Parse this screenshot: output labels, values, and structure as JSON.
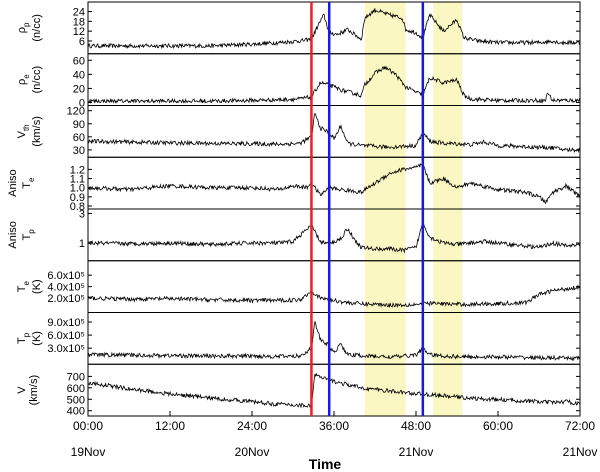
{
  "chart_data": {
    "type": "line",
    "xlabel": "Time",
    "xlim": [
      0,
      72
    ],
    "x_ticks": [
      "00:00",
      "12:00",
      "24:00",
      "36:00",
      "48:00",
      "60:00",
      "72:00"
    ],
    "date_labels": [
      {
        "x": 0,
        "label": "19Nov"
      },
      {
        "x": 24,
        "label": "20Nov"
      },
      {
        "x": 48,
        "label": "21Nov"
      },
      {
        "x": 72,
        "label": "21Nov"
      }
    ],
    "event_lines": [
      {
        "x": 32.7,
        "color": "#e8202a"
      },
      {
        "x": 35.3,
        "color": "#1a1adb"
      },
      {
        "x": 49.0,
        "color": "#1a1adb"
      }
    ],
    "shaded_regions": [
      {
        "x0": 40.5,
        "x1": 46.5,
        "color": "#fbf7c2"
      },
      {
        "x0": 50.5,
        "x1": 54.8,
        "color": "#fbf7c2"
      }
    ],
    "panels": [
      {
        "name": "rho_p",
        "ylabel_parts": [
          "ρ",
          "p",
          "(n/cc)"
        ],
        "ylim": [
          0,
          28
        ],
        "yticks": [
          6,
          12,
          18,
          24
        ],
        "ytick_labels": [
          "6",
          "12",
          "18",
          "24"
        ],
        "series_x": [
          0,
          6,
          12,
          18,
          24,
          28,
          31,
          32.7,
          33.5,
          34.5,
          35.3,
          36.5,
          38,
          40,
          40.5,
          42,
          44,
          46,
          46.5,
          48,
          49,
          50,
          52,
          54,
          55,
          57,
          60,
          63,
          66,
          68,
          69,
          70,
          72
        ],
        "series_y": [
          3,
          3,
          3,
          3,
          4,
          5,
          6,
          7,
          14,
          22,
          11,
          10,
          13,
          7,
          20,
          25,
          22,
          20,
          13,
          11,
          8,
          22,
          12,
          19,
          8,
          6,
          5,
          5,
          5,
          6,
          5,
          5,
          5
        ]
      },
      {
        "name": "rho_e",
        "ylabel_parts": [
          "ρ",
          "e",
          "(n/cc)"
        ],
        "ylim": [
          0,
          65
        ],
        "yticks": [
          0,
          20,
          40,
          60
        ],
        "ytick_labels": [
          "0",
          "20",
          "40",
          "60"
        ],
        "series_x": [
          0,
          6,
          12,
          18,
          24,
          28,
          31,
          32.7,
          34,
          35.3,
          37,
          40,
          40.5,
          42,
          43.5,
          45,
          46.5,
          48,
          49,
          50,
          52,
          54,
          55,
          56,
          60,
          63,
          66,
          67,
          67.2,
          68,
          70,
          72
        ],
        "series_y": [
          2,
          2,
          2,
          2,
          3,
          4,
          5,
          8,
          28,
          25,
          18,
          10,
          25,
          42,
          50,
          40,
          22,
          15,
          10,
          35,
          28,
          32,
          10,
          5,
          3,
          3,
          3,
          3,
          15,
          3,
          3,
          3
        ]
      },
      {
        "name": "V_th",
        "ylabel_parts": [
          "V",
          "th",
          "(km/s)"
        ],
        "ylim": [
          20,
          125
        ],
        "yticks": [
          30,
          60,
          90,
          120
        ],
        "ytick_labels": [
          "30",
          "60",
          "90",
          "120"
        ],
        "series_x": [
          0,
          6,
          12,
          18,
          24,
          28,
          31,
          32.7,
          33.2,
          34,
          35.3,
          36,
          37,
          38,
          40,
          42,
          44,
          46,
          48,
          49,
          50,
          52,
          54,
          56,
          58,
          60,
          63,
          66,
          68,
          70,
          72
        ],
        "series_y": [
          50,
          48,
          46,
          45,
          44,
          43,
          45,
          60,
          115,
          80,
          70,
          55,
          85,
          45,
          40,
          38,
          36,
          38,
          40,
          70,
          50,
          45,
          44,
          42,
          48,
          40,
          38,
          36,
          35,
          30,
          30
        ]
      },
      {
        "name": "T_e_aniso",
        "ylabel_parts": [
          "Aniso",
          "T",
          "e"
        ],
        "ylim": [
          0.8,
          1.3
        ],
        "yticks": [
          0.8,
          0.9,
          1.0,
          1.1,
          1.2
        ],
        "ytick_labels": [
          "0.8",
          "0.9",
          "1.0",
          "1.1",
          "1.2"
        ],
        "series_x": [
          0,
          6,
          12,
          18,
          24,
          28,
          30,
          32,
          32.7,
          34,
          35.3,
          37,
          40,
          42,
          44,
          46,
          48,
          49,
          50,
          52,
          54,
          56,
          60,
          64,
          66,
          67,
          68,
          70,
          72
        ],
        "series_y": [
          1.0,
          0.98,
          1.02,
          1.0,
          1.0,
          0.98,
          1.02,
          1.0,
          1.05,
          0.92,
          1.0,
          0.98,
          0.95,
          1.05,
          1.15,
          1.2,
          1.22,
          1.25,
          1.05,
          1.1,
          1.0,
          1.05,
          0.98,
          0.95,
          0.9,
          0.84,
          0.95,
          1.02,
          0.9
        ]
      },
      {
        "name": "T_p_aniso",
        "ylabel_parts": [
          "Aniso",
          "T",
          "p"
        ],
        "ylim": [
          0,
          3.1
        ],
        "yticks": [
          1,
          3
        ],
        "ytick_labels": [
          "1",
          "3"
        ],
        "series_x": [
          0,
          6,
          12,
          18,
          24,
          28,
          30,
          32.7,
          34,
          35.3,
          37,
          38,
          39,
          40,
          42,
          44,
          46,
          48,
          49,
          50,
          52,
          54,
          56,
          58,
          60,
          62,
          64,
          66,
          68,
          70,
          72
        ],
        "series_y": [
          1.0,
          0.95,
          1.0,
          0.9,
          1.0,
          1.0,
          1.1,
          2.2,
          1.1,
          0.9,
          1.3,
          2.0,
          1.2,
          0.7,
          0.6,
          0.6,
          0.5,
          0.7,
          2.4,
          1.4,
          1.0,
          0.9,
          1.0,
          1.1,
          1.0,
          0.9,
          0.8,
          0.7,
          1.0,
          0.8,
          0.9
        ]
      },
      {
        "name": "T_e",
        "ylabel_parts": [
          "T",
          "e",
          "(K)"
        ],
        "ylim": [
          0,
          800000
        ],
        "yticks": [
          200000,
          400000,
          600000
        ],
        "ytick_labels": [
          "2.0x10⁵",
          "4.0x10⁵",
          "6.0x10⁵"
        ],
        "series_x": [
          0,
          6,
          12,
          18,
          24,
          28,
          31,
          32.7,
          34,
          35.3,
          38,
          40,
          42,
          44,
          46,
          48,
          50,
          52,
          54,
          56,
          58,
          60,
          62,
          64,
          66,
          68,
          70,
          72
        ],
        "series_y": [
          200000,
          180000,
          190000,
          170000,
          160000,
          160000,
          170000,
          320000,
          200000,
          170000,
          120000,
          100000,
          90000,
          80000,
          80000,
          90000,
          110000,
          100000,
          90000,
          90000,
          100000,
          100000,
          110000,
          120000,
          260000,
          330000,
          360000,
          400000
        ]
      },
      {
        "name": "T_p",
        "ylabel_parts": [
          "T",
          "p",
          "(K)"
        ],
        "ylim": [
          0,
          1050000
        ],
        "yticks": [
          300000,
          600000,
          900000
        ],
        "ytick_labels": [
          "3.0x10⁵",
          "6.0x10⁵",
          "9.0x10⁵"
        ],
        "series_x": [
          0,
          6,
          12,
          18,
          24,
          28,
          31,
          32.7,
          33.2,
          34,
          35.3,
          36,
          37,
          38,
          40,
          42,
          44,
          46,
          48,
          49,
          50,
          52,
          54,
          56,
          60,
          63,
          66,
          68,
          70,
          72
        ],
        "series_y": [
          150000,
          140000,
          130000,
          120000,
          120000,
          110000,
          120000,
          300000,
          900000,
          500000,
          350000,
          200000,
          400000,
          150000,
          130000,
          110000,
          100000,
          110000,
          150000,
          300000,
          150000,
          120000,
          110000,
          100000,
          100000,
          90000,
          80000,
          75000,
          70000,
          70000
        ]
      },
      {
        "name": "V",
        "ylabel_parts": [
          "V",
          "(km/s)"
        ],
        "ylim": [
          380,
          780
        ],
        "yticks": [
          400,
          500,
          600,
          700
        ],
        "ytick_labels": [
          "400",
          "500",
          "600",
          "700"
        ],
        "series_x": [
          0,
          3,
          6,
          9,
          12,
          15,
          18,
          21,
          24,
          27,
          30,
          32.7,
          33.2,
          34,
          35.3,
          37,
          40,
          43,
          46,
          49,
          52,
          55,
          58,
          61,
          64,
          67,
          68,
          70,
          72
        ],
        "series_y": [
          640,
          620,
          590,
          570,
          545,
          530,
          510,
          495,
          480,
          460,
          450,
          445,
          720,
          690,
          670,
          640,
          600,
          580,
          560,
          545,
          530,
          515,
          500,
          495,
          485,
          475,
          470,
          480,
          460
        ]
      }
    ]
  }
}
